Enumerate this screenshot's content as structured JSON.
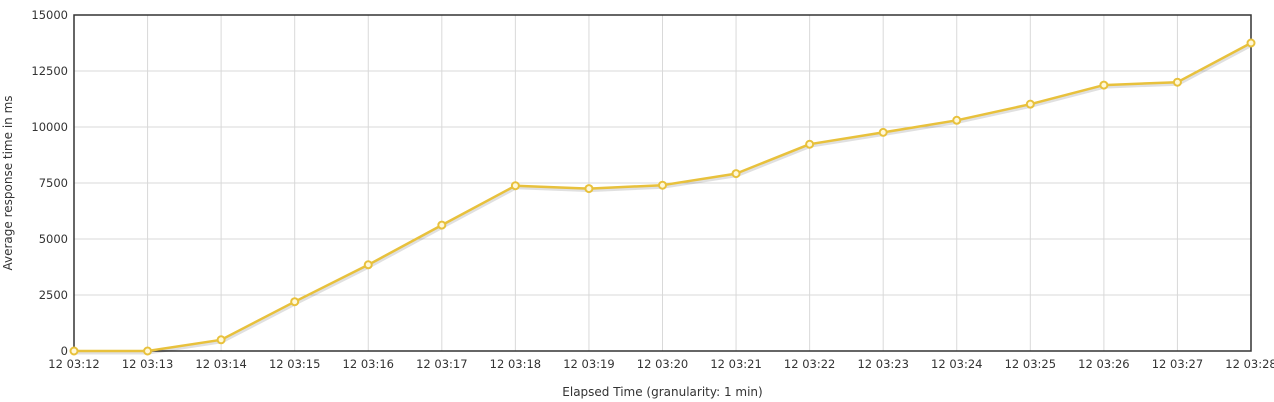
{
  "chart_data": {
    "type": "line",
    "xlabel": "Elapsed Time (granularity: 1 min)",
    "ylabel": "Average response time in ms",
    "ylim": [
      0,
      15000
    ],
    "y_ticks": [
      "0",
      "2500",
      "5000",
      "7500",
      "10000",
      "12500",
      "15000"
    ],
    "grid": true,
    "legend": "none",
    "categories": [
      "12 03:12",
      "12 03:13",
      "12 03:14",
      "12 03:15",
      "12 03:16",
      "12 03:17",
      "12 03:18",
      "12 03:19",
      "12 03:20",
      "12 03:21",
      "12 03:22",
      "12 03:23",
      "12 03:24",
      "12 03:25",
      "12 03:26",
      "12 03:27",
      "12 03:28"
    ],
    "series": [
      {
        "color": "#e8c13c",
        "values": [
          0,
          0,
          500,
          2200,
          3850,
          5620,
          7380,
          7250,
          7400,
          7920,
          9230,
          9760,
          10300,
          11020,
          11870,
          12000,
          13750
        ]
      }
    ]
  }
}
